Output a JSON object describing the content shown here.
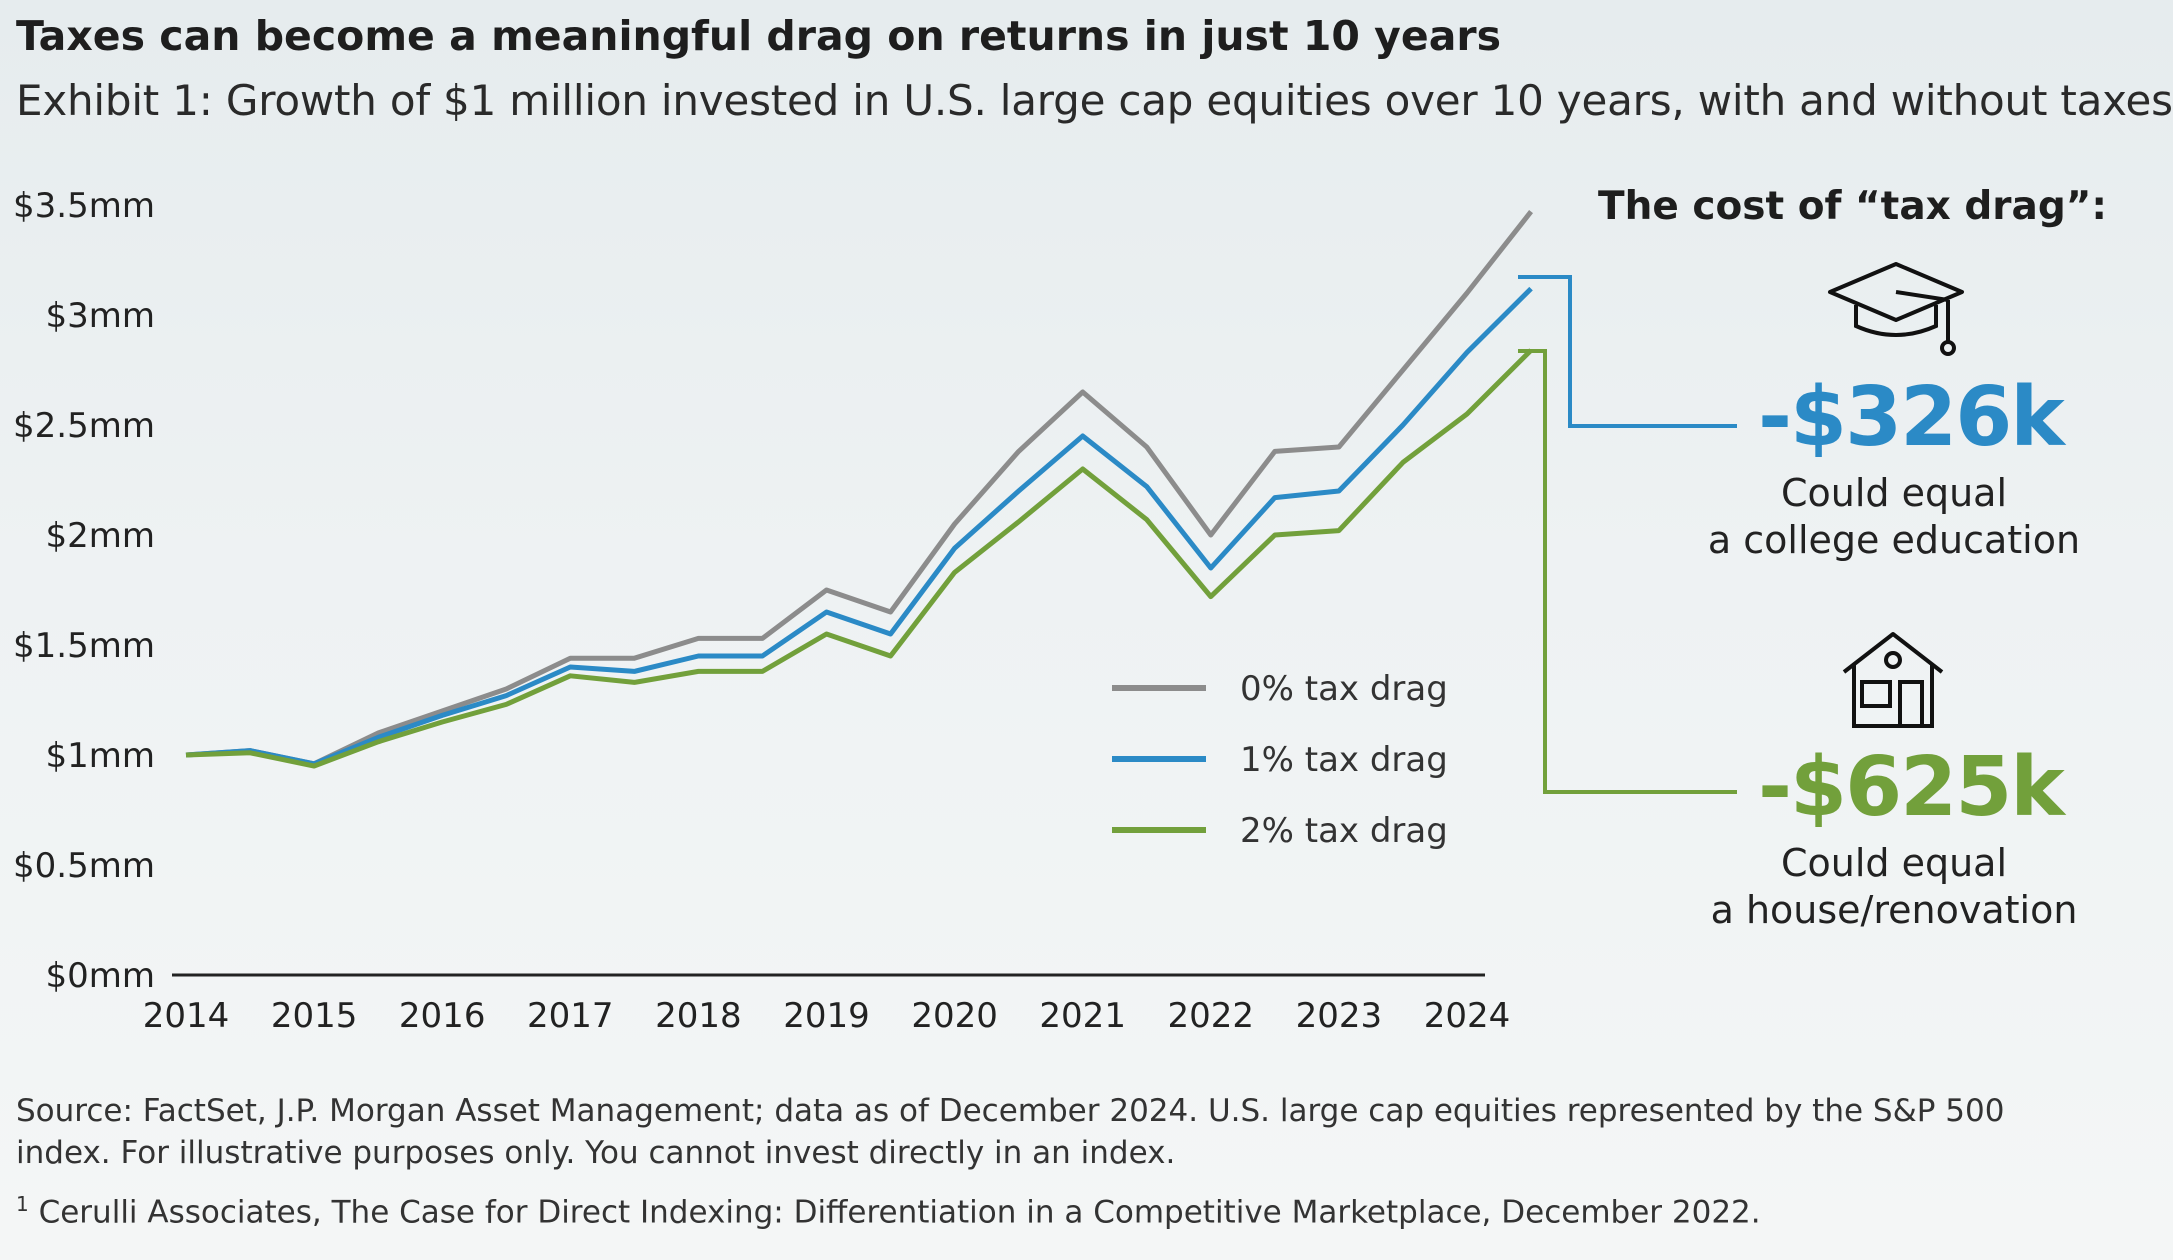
{
  "title": "Taxes can become a meaningful drag on returns in just 10 years",
  "subtitle": "Exhibit 1: Growth of $1 million invested in U.S. large cap equities over 10 years, with and without taxes",
  "cost_heading": "The cost of “tax drag”:",
  "callouts": [
    {
      "value": "-$326k",
      "caption_line1": "Could equal",
      "caption_line2": "a college education",
      "icon": "graduation-cap-icon",
      "color": "#2b8ac6"
    },
    {
      "value": "-$625k",
      "caption_line1": "Could equal",
      "caption_line2": "a house/renovation",
      "icon": "house-icon",
      "color": "#72a03b"
    }
  ],
  "source": "Source: FactSet, J.P. Morgan Asset Management; data as of December 2024. U.S. large cap equities represented by the S&P 500 index. For illustrative purposes only. You cannot invest directly in an index.",
  "footnote_mark": "1",
  "footnote": "Cerulli Associates, The Case for Direct Indexing: Differentiation in a Competitive Marketplace, December 2022.",
  "chart_data": {
    "type": "line",
    "title": "",
    "xlabel": "",
    "ylabel": "",
    "x_ticks": [
      "2014",
      "2015",
      "2016",
      "2017",
      "2018",
      "2019",
      "2020",
      "2021",
      "2022",
      "2023",
      "2024"
    ],
    "y_ticks": [
      "$0mm",
      "$0.5mm",
      "$1mm",
      "$1.5mm",
      "$2mm",
      "$2.5mm",
      "$3mm",
      "$3.5mm"
    ],
    "ylim": [
      0,
      3.5
    ],
    "xlim": [
      2014,
      2024.5
    ],
    "grid": false,
    "legend_position": "center-right",
    "x": [
      2014.0,
      2014.5,
      2015.0,
      2015.5,
      2016.0,
      2016.5,
      2017.0,
      2017.5,
      2018.0,
      2018.5,
      2019.0,
      2019.5,
      2020.0,
      2020.5,
      2021.0,
      2021.5,
      2022.0,
      2022.5,
      2023.0,
      2023.5,
      2024.0,
      2024.5
    ],
    "series": [
      {
        "name": "0% tax drag",
        "color": "#8c8c8c",
        "values": [
          1.0,
          1.02,
          0.96,
          1.1,
          1.2,
          1.3,
          1.44,
          1.44,
          1.53,
          1.53,
          1.75,
          1.65,
          2.05,
          2.38,
          2.65,
          2.4,
          2.0,
          2.38,
          2.4,
          2.75,
          3.1,
          3.47
        ]
      },
      {
        "name": "1% tax drag",
        "color": "#2b8ac6",
        "values": [
          1.0,
          1.02,
          0.96,
          1.08,
          1.18,
          1.27,
          1.4,
          1.38,
          1.45,
          1.45,
          1.65,
          1.55,
          1.94,
          2.2,
          2.45,
          2.22,
          1.85,
          2.17,
          2.2,
          2.5,
          2.83,
          3.12
        ]
      },
      {
        "name": "2% tax drag",
        "color": "#72a03b",
        "values": [
          1.0,
          1.01,
          0.95,
          1.06,
          1.15,
          1.23,
          1.36,
          1.33,
          1.38,
          1.38,
          1.55,
          1.45,
          1.83,
          2.06,
          2.3,
          2.07,
          1.72,
          2.0,
          2.02,
          2.33,
          2.55,
          2.84
        ]
      }
    ]
  }
}
